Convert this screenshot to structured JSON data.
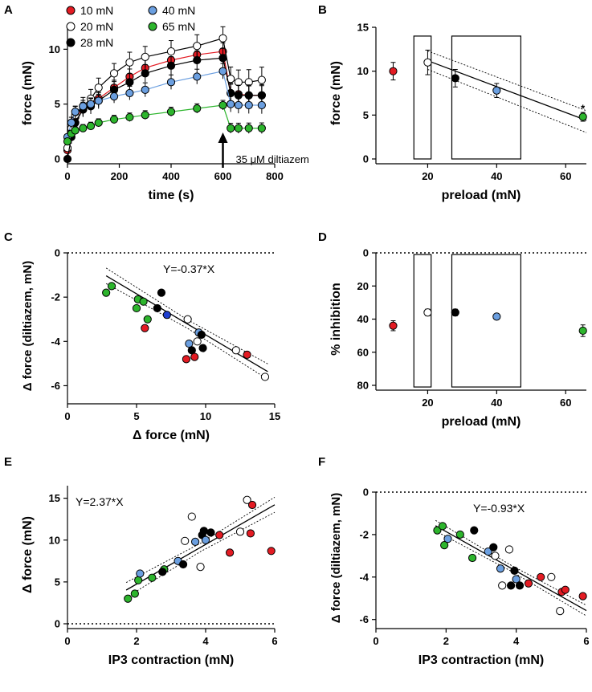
{
  "colors": {
    "10": "#e31b23",
    "20": "#ffffff",
    "28": "#000000",
    "40": "#6b9fe0",
    "65": "#2db52d",
    "dark_blue": "#1f3fd0"
  },
  "chart_data": [
    {
      "id": "A",
      "type": "line",
      "panel_label": "A",
      "xlabel": "time (s)",
      "ylabel": "force (mN)",
      "xlim": [
        0,
        800
      ],
      "ylim": [
        0,
        12
      ],
      "xticks": [
        0,
        200,
        400,
        600,
        800
      ],
      "yticks": [
        0,
        5,
        10
      ],
      "legend": [
        {
          "label": "10 mN",
          "group": "10"
        },
        {
          "label": "20 mN",
          "group": "20"
        },
        {
          "label": "28 mN",
          "group": "28"
        },
        {
          "label": "40 mN",
          "group": "40"
        },
        {
          "label": "65 mN",
          "group": "65"
        }
      ],
      "annotation": {
        "text": "35 μM diltiazem",
        "x": 600
      },
      "x": [
        0,
        15,
        30,
        60,
        90,
        120,
        180,
        240,
        300,
        400,
        500,
        600,
        630,
        660,
        700,
        750
      ],
      "series": [
        {
          "name": "10 mN",
          "group": "10",
          "values": [
            0.8,
            2.5,
            3.8,
            4.5,
            5.0,
            5.5,
            6.5,
            7.5,
            8.3,
            9.0,
            9.5,
            9.8,
            6.0,
            5.9,
            5.8,
            5.8
          ],
          "err": 0.9
        },
        {
          "name": "20 mN",
          "group": "20",
          "values": [
            1.0,
            2.8,
            4.0,
            4.8,
            5.5,
            6.5,
            7.8,
            8.8,
            9.3,
            9.8,
            10.3,
            11.0,
            7.3,
            7.0,
            7.0,
            7.2
          ],
          "err": 1.2
        },
        {
          "name": "28 mN",
          "group": "28",
          "values": [
            0.0,
            2.0,
            3.3,
            4.5,
            4.8,
            5.3,
            6.3,
            7.0,
            7.8,
            8.5,
            9.0,
            9.2,
            6.0,
            5.8,
            5.8,
            5.8
          ],
          "err": 1.0
        },
        {
          "name": "40 mN",
          "group": "40",
          "values": [
            2.0,
            3.3,
            4.3,
            4.8,
            5.0,
            5.3,
            5.7,
            6.0,
            6.3,
            7.0,
            7.5,
            8.0,
            5.0,
            4.9,
            4.9,
            4.9
          ],
          "err": 0.8
        },
        {
          "name": "65 mN",
          "group": "65",
          "values": [
            1.6,
            2.3,
            2.6,
            2.8,
            3.0,
            3.3,
            3.6,
            3.8,
            4.0,
            4.3,
            4.6,
            4.9,
            2.8,
            2.8,
            2.8,
            2.8
          ],
          "err": 0.5
        }
      ]
    },
    {
      "id": "B",
      "type": "scatter",
      "panel_label": "B",
      "xlabel": "preload (mN)",
      "ylabel": "force (mN)",
      "xlim": [
        5,
        66
      ],
      "ylim": [
        0,
        15
      ],
      "xticks": [
        20,
        40,
        60
      ],
      "yticks": [
        0,
        5,
        10,
        15
      ],
      "points": [
        {
          "x": 10,
          "y": 10.0,
          "err": 1.0,
          "group": "10"
        },
        {
          "x": 20,
          "y": 11.0,
          "err": 1.4,
          "group": "20"
        },
        {
          "x": 28,
          "y": 9.2,
          "err": 1.0,
          "group": "28"
        },
        {
          "x": 40,
          "y": 7.8,
          "err": 0.8,
          "group": "40"
        },
        {
          "x": 65,
          "y": 4.8,
          "err": 0.5,
          "group": "65"
        }
      ],
      "fit": {
        "x": [
          20,
          66
        ],
        "y": [
          11.2,
          4.4
        ],
        "ci_upper": [
          12.3,
          5.5
        ],
        "ci_lower": [
          10.2,
          3.0
        ]
      },
      "boxes": [
        {
          "x0": 16,
          "x1": 21,
          "y0": 0,
          "y1": 14.0
        },
        {
          "x0": 27,
          "x1": 47,
          "y0": 0,
          "y1": 14.0
        }
      ],
      "star": {
        "text": "*",
        "x": 65,
        "y": 5.9
      }
    },
    {
      "id": "C",
      "type": "scatter",
      "panel_label": "C",
      "xlabel": "Δ force (mN)",
      "ylabel": "Δ force (diltiazem, mN)",
      "xlim": [
        0,
        15
      ],
      "ylim": [
        -6.6,
        0
      ],
      "xticks": [
        0,
        5,
        10,
        15
      ],
      "yticks": [
        0,
        -2,
        -4,
        -6
      ],
      "equation": "Y=-0.37*X",
      "fit": {
        "x": [
          2.8,
          14.5
        ],
        "slope": -0.37,
        "ci_width": 0.35
      },
      "points": [
        {
          "x": 2.8,
          "y": -1.8,
          "group": "65"
        },
        {
          "x": 3.2,
          "y": -1.5,
          "group": "65"
        },
        {
          "x": 5.1,
          "y": -2.1,
          "group": "65"
        },
        {
          "x": 5.0,
          "y": -2.5,
          "group": "65"
        },
        {
          "x": 5.5,
          "y": -2.2,
          "group": "65"
        },
        {
          "x": 5.6,
          "y": -3.4,
          "group": "10"
        },
        {
          "x": 5.8,
          "y": -3.0,
          "group": "65"
        },
        {
          "x": 6.5,
          "y": -2.5,
          "group": "28"
        },
        {
          "x": 6.8,
          "y": -1.8,
          "group": "28"
        },
        {
          "x": 7.2,
          "y": -2.8,
          "group": "dark_blue"
        },
        {
          "x": 8.7,
          "y": -3.0,
          "group": "20"
        },
        {
          "x": 8.8,
          "y": -4.1,
          "group": "40"
        },
        {
          "x": 9.0,
          "y": -4.4,
          "group": "28"
        },
        {
          "x": 9.2,
          "y": -4.7,
          "group": "10"
        },
        {
          "x": 8.6,
          "y": -4.8,
          "group": "10"
        },
        {
          "x": 9.5,
          "y": -3.6,
          "group": "40"
        },
        {
          "x": 9.7,
          "y": -3.7,
          "group": "28"
        },
        {
          "x": 9.4,
          "y": -4.0,
          "group": "20"
        },
        {
          "x": 9.8,
          "y": -4.3,
          "group": "28"
        },
        {
          "x": 12.2,
          "y": -4.4,
          "group": "20"
        },
        {
          "x": 13.0,
          "y": -4.6,
          "group": "10"
        },
        {
          "x": 14.3,
          "y": -5.6,
          "group": "20"
        }
      ]
    },
    {
      "id": "D",
      "type": "scatter",
      "panel_label": "D",
      "xlabel": "preload (mN)",
      "ylabel": "% inhibition",
      "xlim": [
        5,
        66
      ],
      "ylim": [
        80,
        0
      ],
      "xticks": [
        20,
        40,
        60
      ],
      "yticks": [
        0,
        20,
        40,
        60,
        80
      ],
      "points": [
        {
          "x": 10,
          "y": 44,
          "err": 3,
          "group": "10"
        },
        {
          "x": 20,
          "y": 36,
          "err": 2,
          "group": "20"
        },
        {
          "x": 28,
          "y": 36,
          "err": 2,
          "group": "28"
        },
        {
          "x": 40,
          "y": 38.5,
          "err": 1.5,
          "group": "40"
        },
        {
          "x": 65,
          "y": 47,
          "err": 3.5,
          "group": "65"
        }
      ],
      "boxes": [
        {
          "x0": 16,
          "x1": 21,
          "y0": 1,
          "y1": 81
        },
        {
          "x0": 27,
          "x1": 47,
          "y0": 1,
          "y1": 81
        }
      ]
    },
    {
      "id": "E",
      "type": "scatter",
      "panel_label": "E",
      "xlabel": "IP3 contraction (mN)",
      "ylabel": "Δ force (mN)",
      "xlim": [
        0,
        6
      ],
      "ylim": [
        0,
        16.5
      ],
      "xticks": [
        0,
        2,
        4,
        6
      ],
      "yticks": [
        0,
        5,
        10,
        15
      ],
      "equation": "Y=2.37*X",
      "fit": {
        "x": [
          1.7,
          6.0
        ],
        "slope": 2.37,
        "ci_width": 0.9
      },
      "points": [
        {
          "x": 1.75,
          "y": 3.0,
          "group": "65"
        },
        {
          "x": 1.95,
          "y": 3.6,
          "group": "65"
        },
        {
          "x": 2.05,
          "y": 5.2,
          "group": "65"
        },
        {
          "x": 2.1,
          "y": 6.0,
          "group": "40"
        },
        {
          "x": 2.45,
          "y": 5.5,
          "group": "65"
        },
        {
          "x": 2.8,
          "y": 6.5,
          "group": "65"
        },
        {
          "x": 2.75,
          "y": 6.2,
          "group": "28"
        },
        {
          "x": 3.2,
          "y": 7.5,
          "group": "40"
        },
        {
          "x": 3.35,
          "y": 7.1,
          "group": "28"
        },
        {
          "x": 3.4,
          "y": 9.9,
          "group": "20"
        },
        {
          "x": 3.6,
          "y": 12.8,
          "group": "20"
        },
        {
          "x": 3.7,
          "y": 9.8,
          "group": "40"
        },
        {
          "x": 3.85,
          "y": 6.8,
          "group": "20"
        },
        {
          "x": 3.9,
          "y": 10.6,
          "group": "28"
        },
        {
          "x": 3.95,
          "y": 11.1,
          "group": "28"
        },
        {
          "x": 4.0,
          "y": 10.0,
          "group": "40"
        },
        {
          "x": 4.15,
          "y": 10.9,
          "group": "28"
        },
        {
          "x": 4.4,
          "y": 10.6,
          "group": "10"
        },
        {
          "x": 4.7,
          "y": 8.5,
          "group": "10"
        },
        {
          "x": 5.0,
          "y": 11.0,
          "group": "20"
        },
        {
          "x": 5.2,
          "y": 14.8,
          "group": "20"
        },
        {
          "x": 5.35,
          "y": 14.2,
          "group": "10"
        },
        {
          "x": 5.3,
          "y": 10.8,
          "group": "10"
        },
        {
          "x": 5.9,
          "y": 8.7,
          "group": "10"
        }
      ]
    },
    {
      "id": "F",
      "type": "scatter",
      "panel_label": "F",
      "xlabel": "IP3 contraction (mN)",
      "ylabel": "Δ force (diltiazem, mN)",
      "xlim": [
        0,
        6
      ],
      "ylim": [
        -6.2,
        0
      ],
      "xticks": [
        0,
        2,
        4,
        6
      ],
      "yticks": [
        0,
        -2,
        -4,
        -6
      ],
      "equation": "Y=-0.93*X",
      "fit": {
        "x": [
          1.7,
          6.0
        ],
        "slope": -0.93,
        "ci_width": 0.25
      },
      "points": [
        {
          "x": 1.75,
          "y": -1.8,
          "group": "65"
        },
        {
          "x": 1.9,
          "y": -1.6,
          "group": "65"
        },
        {
          "x": 1.95,
          "y": -2.5,
          "group": "65"
        },
        {
          "x": 2.05,
          "y": -2.2,
          "group": "40"
        },
        {
          "x": 2.4,
          "y": -2.0,
          "group": "65"
        },
        {
          "x": 2.75,
          "y": -3.1,
          "group": "65"
        },
        {
          "x": 2.8,
          "y": -1.8,
          "group": "28"
        },
        {
          "x": 3.2,
          "y": -2.8,
          "group": "40"
        },
        {
          "x": 3.35,
          "y": -2.6,
          "group": "28"
        },
        {
          "x": 3.4,
          "y": -3.0,
          "group": "20"
        },
        {
          "x": 3.55,
          "y": -3.6,
          "group": "40"
        },
        {
          "x": 3.6,
          "y": -4.4,
          "group": "20"
        },
        {
          "x": 3.8,
          "y": -2.7,
          "group": "20"
        },
        {
          "x": 3.85,
          "y": -4.4,
          "group": "28"
        },
        {
          "x": 3.95,
          "y": -3.7,
          "group": "28"
        },
        {
          "x": 4.0,
          "y": -4.1,
          "group": "40"
        },
        {
          "x": 4.1,
          "y": -4.4,
          "group": "28"
        },
        {
          "x": 4.35,
          "y": -4.3,
          "group": "10"
        },
        {
          "x": 4.7,
          "y": -4.0,
          "group": "10"
        },
        {
          "x": 5.0,
          "y": -4.0,
          "group": "20"
        },
        {
          "x": 5.25,
          "y": -5.6,
          "group": "20"
        },
        {
          "x": 5.3,
          "y": -4.7,
          "group": "10"
        },
        {
          "x": 5.4,
          "y": -4.6,
          "group": "10"
        },
        {
          "x": 5.9,
          "y": -4.9,
          "group": "10"
        }
      ]
    }
  ]
}
